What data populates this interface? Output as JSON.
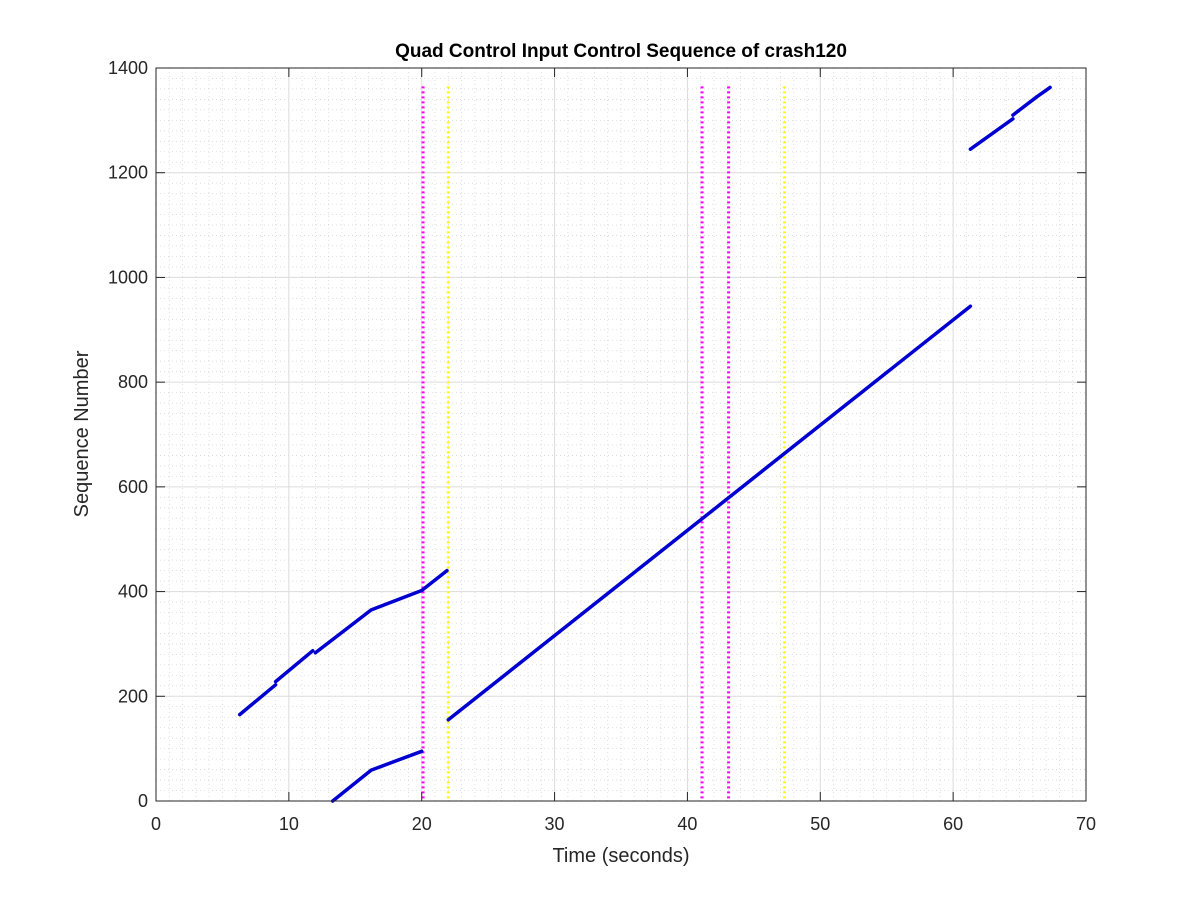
{
  "chart_data": {
    "type": "line",
    "title": "Quad Control Input Control Sequence of crash120",
    "xlabel": "Time (seconds)",
    "ylabel": "Sequence Number",
    "xlim": [
      0,
      70
    ],
    "ylim": [
      0,
      1400
    ],
    "xticks": [
      0,
      10,
      20,
      30,
      40,
      50,
      60,
      70
    ],
    "yticks": [
      0,
      200,
      400,
      600,
      800,
      1000,
      1200,
      1400
    ],
    "grid": true,
    "minor_grid": true,
    "series_color": "#0000d0",
    "series": [
      {
        "points": [
          [
            6.3,
            165
          ],
          [
            9.0,
            222
          ]
        ]
      },
      {
        "points": [
          [
            9.0,
            228
          ],
          [
            11.8,
            287
          ]
        ]
      },
      {
        "points": [
          [
            12.0,
            283
          ],
          [
            16.2,
            365
          ],
          [
            20.0,
            402
          ],
          [
            21.9,
            440
          ]
        ]
      },
      {
        "points": [
          [
            13.3,
            0
          ],
          [
            16.2,
            59
          ],
          [
            20.0,
            95
          ]
        ]
      },
      {
        "points": [
          [
            22.0,
            155
          ],
          [
            61.3,
            945
          ]
        ]
      },
      {
        "points": [
          [
            61.3,
            1245
          ],
          [
            64.5,
            1303
          ]
        ]
      },
      {
        "points": [
          [
            64.5,
            1310
          ],
          [
            66.3,
            1345
          ]
        ]
      },
      {
        "points": [
          [
            66.3,
            1345
          ],
          [
            67.3,
            1363
          ]
        ]
      }
    ],
    "vertical_lines": [
      {
        "x": 20.1,
        "color": "#ff00ff"
      },
      {
        "x": 22.0,
        "color": "#ffff00"
      },
      {
        "x": 41.1,
        "color": "#ff00ff"
      },
      {
        "x": 43.1,
        "color": "#ff00ff"
      },
      {
        "x": 47.3,
        "color": "#ffff00"
      }
    ]
  }
}
